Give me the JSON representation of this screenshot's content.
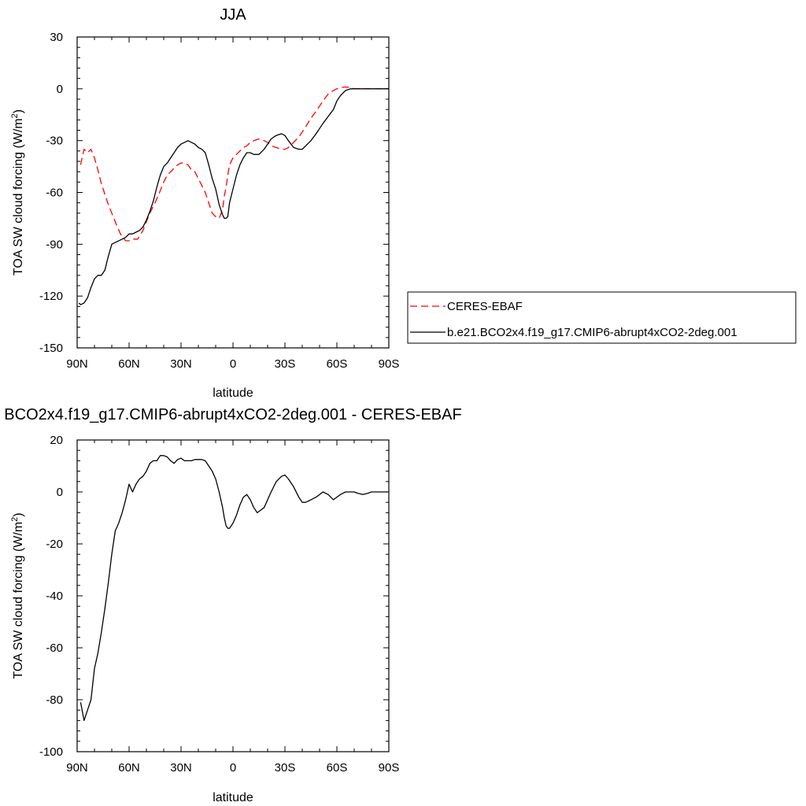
{
  "chart_data": [
    {
      "type": "line",
      "title": "JJA",
      "xlabel": "latitude",
      "ylabel": "TOA SW cloud forcing (W/m²)",
      "ylabel_main": "TOA SW cloud forcing (W/m",
      "ylabel_sup": "2",
      "ylabel_end": ")",
      "x_axis": "latitude, positive = N",
      "xlim": [
        90,
        -90
      ],
      "ylim": [
        -150,
        30
      ],
      "x_ticks": [
        90,
        60,
        30,
        0,
        -30,
        -60,
        -90
      ],
      "x_tick_labels": [
        "90N",
        "60N",
        "30N",
        "0",
        "30S",
        "60S",
        "90S"
      ],
      "y_ticks": [
        30,
        0,
        -30,
        -60,
        -90,
        -120,
        -150
      ],
      "y_tick_labels": [
        "30",
        "0",
        "-30",
        "-60",
        "-90",
        "-120",
        "-150"
      ],
      "legend_position": "right, lower",
      "series": [
        {
          "name": "CERES-EBAF",
          "color": "#ff0000",
          "dash": "dashed",
          "x": [
            88,
            86,
            84,
            82,
            80,
            78,
            76,
            74,
            72,
            70,
            68,
            65,
            62,
            60,
            58,
            55,
            52,
            50,
            48,
            45,
            42,
            40,
            38,
            35,
            32,
            30,
            28,
            26,
            24,
            22,
            20,
            18,
            16,
            14,
            12,
            10,
            8,
            6,
            5,
            4,
            3,
            2,
            0,
            -2,
            -4,
            -6,
            -8,
            -10,
            -12,
            -15,
            -18,
            -20,
            -22,
            -25,
            -28,
            -30,
            -32,
            -35,
            -38,
            -40,
            -42,
            -45,
            -48,
            -50,
            -52,
            -55,
            -58,
            -60,
            -62,
            -64,
            -66,
            -68,
            -70,
            -72,
            -74,
            -76,
            -78,
            -80,
            -85,
            -90
          ],
          "values": [
            -44,
            -35,
            -37,
            -35,
            -40,
            -47,
            -55,
            -61,
            -67,
            -72,
            -77,
            -84,
            -88,
            -88,
            -87,
            -87,
            -82,
            -77,
            -72,
            -66,
            -59,
            -54,
            -50,
            -47,
            -44,
            -43,
            -43,
            -44,
            -47,
            -48,
            -52,
            -56,
            -60,
            -66,
            -72,
            -74,
            -75,
            -70,
            -62,
            -57,
            -50,
            -44,
            -40,
            -38,
            -36,
            -34,
            -33,
            -31,
            -30,
            -29,
            -30,
            -31,
            -33,
            -34,
            -35,
            -35,
            -34,
            -31,
            -28,
            -25,
            -22,
            -17,
            -13,
            -10,
            -7,
            -3,
            -1,
            0,
            0.5,
            1,
            1,
            0.5,
            0,
            0,
            0,
            0,
            0,
            0,
            0,
            0
          ]
        },
        {
          "name": "b.e21.BCO2x4.f19_g17.CMIP6-abrupt4xCO2-2deg.001",
          "color": "#000000",
          "dash": "solid",
          "x": [
            89,
            88,
            86,
            84,
            82,
            80,
            78,
            76,
            74,
            72,
            70,
            68,
            66,
            64,
            62,
            60,
            58,
            56,
            54,
            52,
            50,
            48,
            46,
            44,
            42,
            40,
            38,
            36,
            34,
            32,
            30,
            28,
            26,
            24,
            22,
            20,
            18,
            16,
            14,
            12,
            10,
            8,
            6,
            5,
            4,
            3,
            2,
            0,
            -2,
            -4,
            -6,
            -8,
            -10,
            -12,
            -15,
            -18,
            -20,
            -22,
            -25,
            -28,
            -30,
            -32,
            -35,
            -38,
            -40,
            -42,
            -45,
            -48,
            -50,
            -52,
            -55,
            -58,
            -60,
            -62,
            -65,
            -68,
            -70,
            -72,
            -75,
            -78,
            -80,
            -85,
            -90
          ],
          "values": [
            -124,
            -125,
            -124,
            -121,
            -115,
            -110,
            -108,
            -108,
            -105,
            -97,
            -90,
            -89,
            -88,
            -87,
            -86,
            -84,
            -84,
            -83,
            -82,
            -80,
            -76,
            -71,
            -65,
            -57,
            -50,
            -45,
            -43,
            -40,
            -37,
            -34,
            -32,
            -31,
            -30,
            -31,
            -32,
            -34,
            -35,
            -37,
            -44,
            -52,
            -58,
            -67,
            -73,
            -75,
            -75,
            -74,
            -66,
            -58,
            -50,
            -44,
            -40,
            -37,
            -37,
            -38,
            -38,
            -35,
            -32,
            -29,
            -27,
            -26,
            -27,
            -30,
            -34,
            -35,
            -35,
            -33,
            -30,
            -26,
            -23,
            -20,
            -16,
            -12,
            -7,
            -4,
            -1,
            0,
            0,
            0,
            0,
            0,
            0,
            0,
            0
          ]
        }
      ]
    },
    {
      "type": "line",
      "title": "BCO2x4.f19_g17.CMIP6-abrupt4xCO2-2deg.001 - CERES-EBAF",
      "xlabel": "latitude",
      "ylabel": "TOA SW cloud forcing (W/m²)",
      "ylabel_main": "TOA SW cloud forcing (W/m",
      "ylabel_sup": "2",
      "ylabel_end": ")",
      "x_axis": "latitude, positive = N",
      "xlim": [
        90,
        -90
      ],
      "ylim": [
        -100,
        20
      ],
      "x_ticks": [
        90,
        60,
        30,
        0,
        -30,
        -60,
        -90
      ],
      "x_tick_labels": [
        "90N",
        "60N",
        "30N",
        "0",
        "30S",
        "60S",
        "90S"
      ],
      "y_ticks": [
        20,
        0,
        -20,
        -40,
        -60,
        -80,
        -100
      ],
      "y_tick_labels": [
        "20",
        "0",
        "-20",
        "-40",
        "-60",
        "-80",
        "-100"
      ],
      "series": [
        {
          "color": "#000000",
          "dash": "solid",
          "x": [
            88,
            86,
            84,
            82,
            80,
            78,
            76,
            74,
            72,
            70,
            68,
            66,
            64,
            62,
            60,
            58,
            56,
            54,
            52,
            50,
            48,
            46,
            44,
            42,
            40,
            38,
            36,
            34,
            32,
            30,
            28,
            26,
            24,
            22,
            20,
            18,
            16,
            14,
            12,
            10,
            8,
            6,
            5,
            4,
            3,
            2,
            0,
            -2,
            -4,
            -6,
            -8,
            -10,
            -12,
            -14,
            -16,
            -18,
            -20,
            -22,
            -25,
            -28,
            -30,
            -32,
            -35,
            -38,
            -40,
            -42,
            -45,
            -48,
            -50,
            -52,
            -55,
            -58,
            -60,
            -62,
            -65,
            -68,
            -70,
            -72,
            -75,
            -78,
            -80,
            -85,
            -90
          ],
          "values": [
            -81,
            -88,
            -84,
            -80,
            -68,
            -62,
            -54,
            -45,
            -35,
            -24,
            -15,
            -12,
            -8,
            -3,
            3,
            0,
            3,
            5,
            6,
            8,
            11,
            12,
            12,
            14,
            14,
            13.5,
            12,
            11,
            12.5,
            13,
            12,
            12,
            12,
            12.5,
            12.5,
            12.5,
            12,
            10,
            8,
            5,
            0,
            -6,
            -10,
            -13,
            -14,
            -14,
            -12,
            -9,
            -5,
            -2,
            -1,
            -3,
            -6,
            -8,
            -7,
            -6,
            -3,
            0,
            4,
            6,
            6.5,
            5,
            2,
            -2,
            -4,
            -4,
            -3,
            -2,
            -1,
            0,
            -1,
            -3,
            -2,
            -1,
            0,
            0,
            0,
            -0.5,
            -1,
            -0.5,
            0,
            0,
            0
          ]
        }
      ]
    }
  ]
}
